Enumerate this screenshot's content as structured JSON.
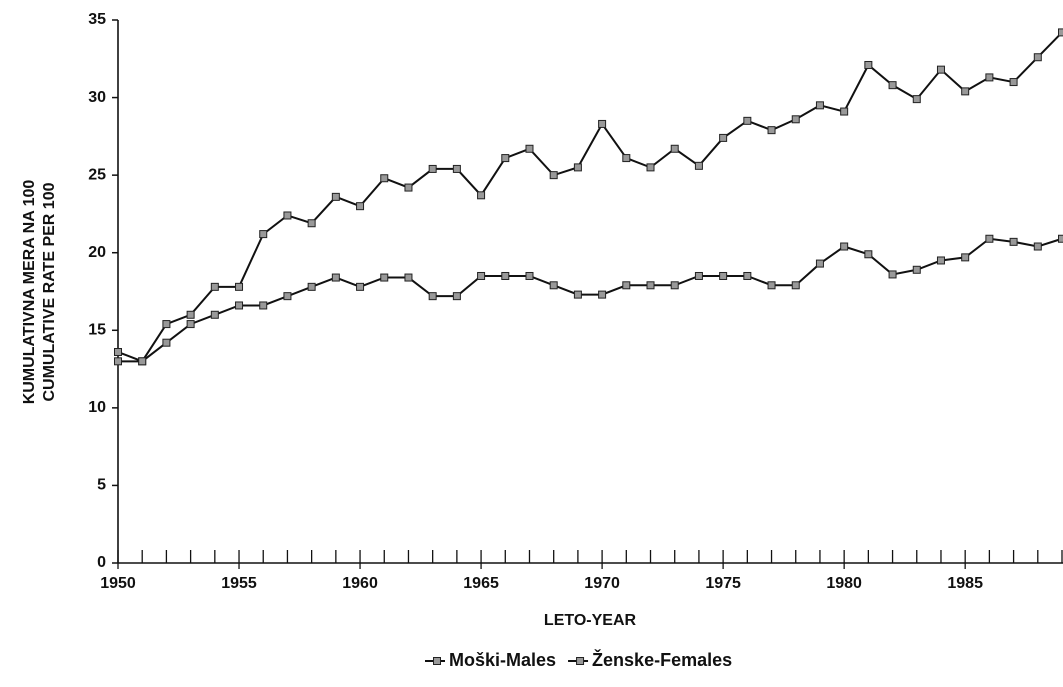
{
  "chart_data": {
    "type": "line",
    "y_label": [
      "KUMULATIVNA MERA NA 100",
      "CUMULATIVE RATE PER 100"
    ],
    "x_label": "LETO-YEAR",
    "x": [
      1950,
      1951,
      1952,
      1953,
      1954,
      1955,
      1956,
      1957,
      1958,
      1959,
      1960,
      1961,
      1962,
      1963,
      1964,
      1965,
      1966,
      1967,
      1968,
      1969,
      1970,
      1971,
      1972,
      1973,
      1974,
      1975,
      1976,
      1977,
      1978,
      1979,
      1980,
      1981,
      1982,
      1983,
      1984,
      1985,
      1986,
      1987,
      1988,
      1989
    ],
    "series": [
      {
        "name": "Moški-Males",
        "color": "#111111",
        "values": [
          13.0,
          13.0,
          15.4,
          16.0,
          17.8,
          17.8,
          21.2,
          22.4,
          21.9,
          23.6,
          23.0,
          24.8,
          24.2,
          25.4,
          25.4,
          23.7,
          26.1,
          26.7,
          25.0,
          25.5,
          28.3,
          26.1,
          25.5,
          26.7,
          25.6,
          27.4,
          28.5,
          27.9,
          28.6,
          29.5,
          29.1,
          32.1,
          30.8,
          29.9,
          31.8,
          30.4,
          31.3,
          31.0,
          32.6,
          34.2
        ]
      },
      {
        "name": "Ženske-Females",
        "color": "#111111",
        "values": [
          13.6,
          13.0,
          14.2,
          15.4,
          16.0,
          16.6,
          16.6,
          17.2,
          17.8,
          18.4,
          17.8,
          18.4,
          18.4,
          17.2,
          17.2,
          18.5,
          18.5,
          18.5,
          17.9,
          17.3,
          17.3,
          17.9,
          17.9,
          17.9,
          18.5,
          18.5,
          18.5,
          17.9,
          17.9,
          19.3,
          20.4,
          19.9,
          18.6,
          18.9,
          19.5,
          19.7,
          20.9,
          20.7,
          20.4,
          20.9
        ]
      }
    ],
    "xlim": [
      1950,
      1989
    ],
    "xticks": [
      1950,
      1955,
      1960,
      1965,
      1970,
      1975,
      1980,
      1985
    ],
    "xminorticks": [
      1950,
      1951,
      1952,
      1953,
      1954,
      1955,
      1956,
      1957,
      1958,
      1959,
      1960,
      1961,
      1962,
      1963,
      1964,
      1965,
      1966,
      1967,
      1968,
      1969,
      1970,
      1971,
      1972,
      1973,
      1974,
      1975,
      1976,
      1977,
      1978,
      1979,
      1980,
      1981,
      1982,
      1983,
      1984,
      1985,
      1986,
      1987,
      1988,
      1989
    ],
    "ylim": [
      0,
      35
    ],
    "yticks": [
      0,
      5,
      10,
      15,
      20,
      25,
      30,
      35
    ],
    "grid": false,
    "legend": "bottom"
  }
}
